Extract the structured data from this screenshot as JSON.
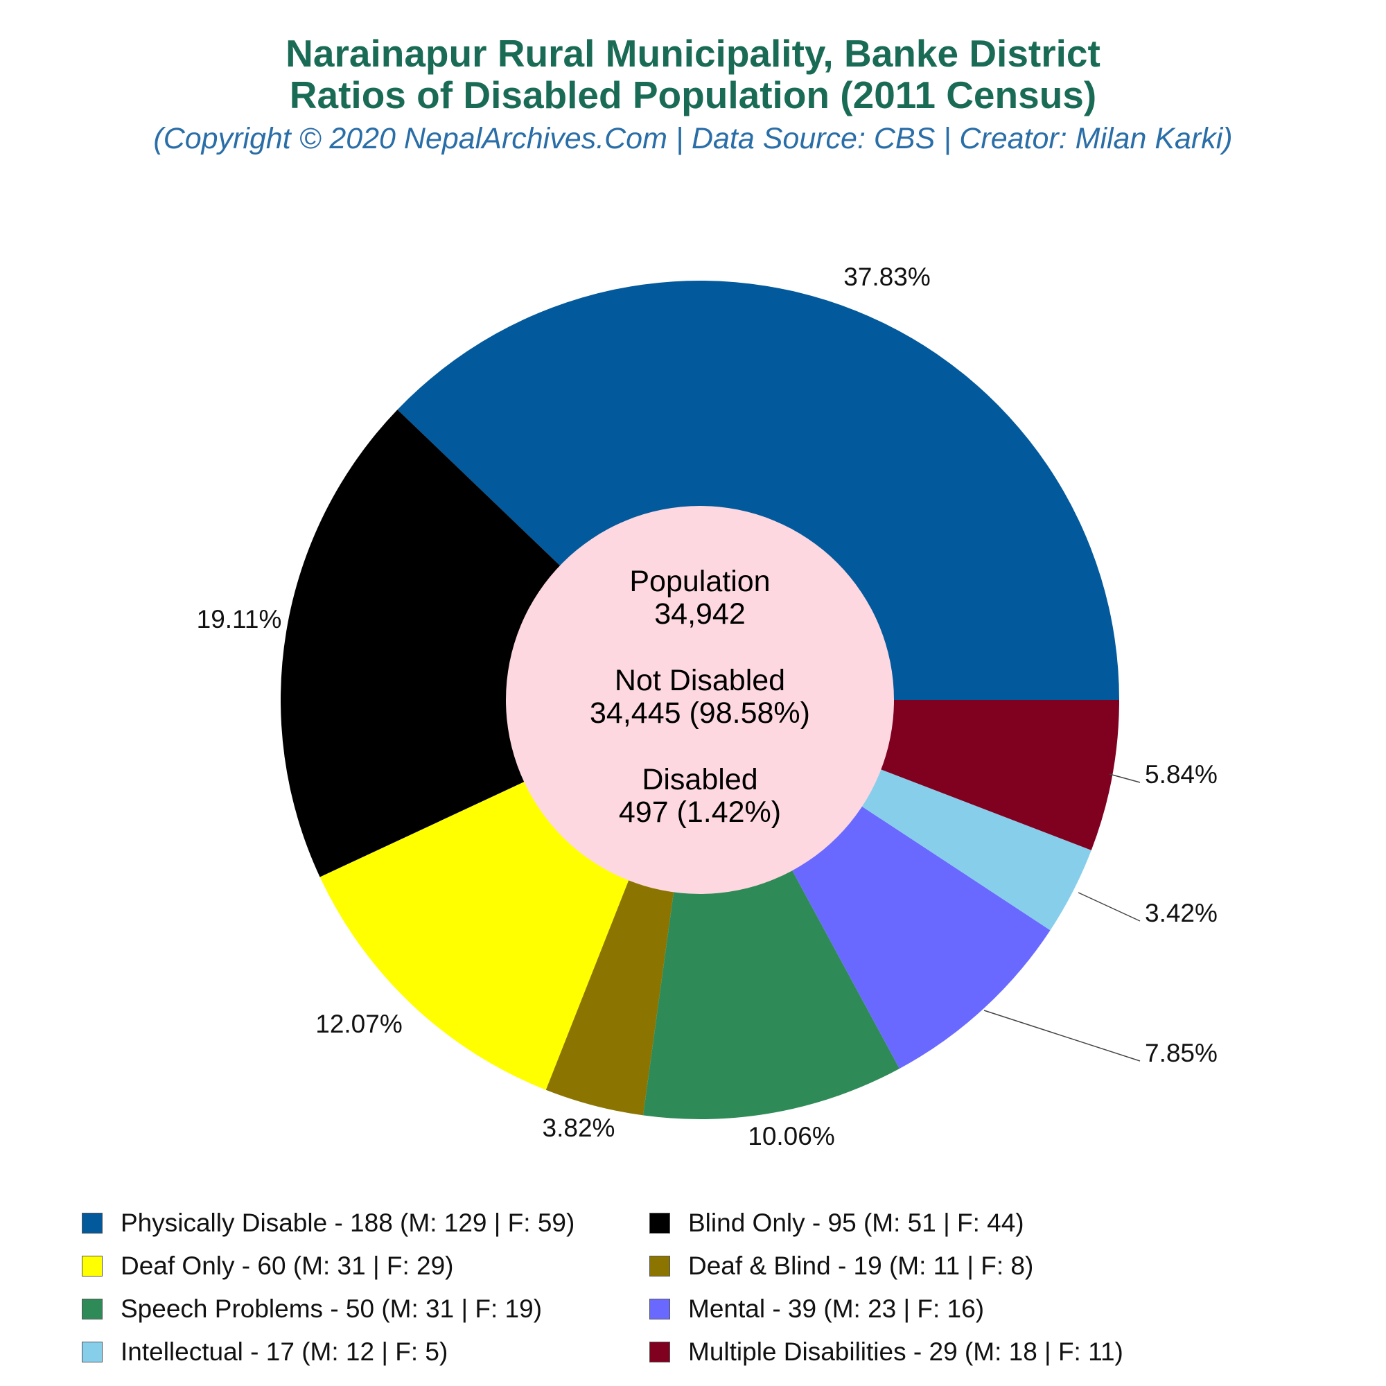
{
  "header": {
    "title_line1": "Narainapur Rural Municipality, Banke District",
    "title_line2": "Ratios of Disabled Population (2011 Census)",
    "subtitle": "(Copyright © 2020 NepalArchives.Com | Data Source: CBS | Creator: Milan Karki)"
  },
  "center": {
    "population_label": "Population",
    "population_value": "34,942",
    "not_disabled_label": "Not Disabled",
    "not_disabled_value": "34,445 (98.58%)",
    "disabled_label": "Disabled",
    "disabled_value": "497 (1.42%)",
    "color": "#fdd8e0"
  },
  "chart_data": {
    "type": "pie",
    "donut": true,
    "start": "3 o'clock, counter-clockwise",
    "slices": [
      {
        "name": "Physically Disable",
        "value": 188,
        "percent_label": "37.83%",
        "color": "#02599c",
        "legend": "Physically Disable - 188 (M: 129 | F: 59)"
      },
      {
        "name": "Blind Only",
        "value": 95,
        "percent_label": "19.11%",
        "color": "#000000",
        "legend": "Blind Only - 95 (M: 51 | F: 44)"
      },
      {
        "name": "Deaf Only",
        "value": 60,
        "percent_label": "12.07%",
        "color": "#ffff00",
        "legend": "Deaf Only - 60 (M: 31 | F: 29)"
      },
      {
        "name": "Deaf & Blind",
        "value": 19,
        "percent_label": "3.82%",
        "color": "#8b7500",
        "legend": "Deaf & Blind - 19 (M: 11 | F: 8)"
      },
      {
        "name": "Speech Problems",
        "value": 50,
        "percent_label": "10.06%",
        "color": "#2e8b57",
        "legend": "Speech Problems - 50 (M: 31 | F: 19)"
      },
      {
        "name": "Mental",
        "value": 39,
        "percent_label": "7.85%",
        "color": "#6969ff",
        "legend": "Mental - 39 (M: 23 | F: 16)"
      },
      {
        "name": "Intellectual",
        "value": 17,
        "percent_label": "3.42%",
        "color": "#87ceeb",
        "legend": "Intellectual - 17 (M: 12 | F: 5)"
      },
      {
        "name": "Multiple Disabilities",
        "value": 29,
        "percent_label": "5.84%",
        "color": "#800020",
        "legend": "Multiple Disabilities - 29 (M: 18 | F: 11)"
      }
    ],
    "legend_placement": "bottom, two columns"
  }
}
